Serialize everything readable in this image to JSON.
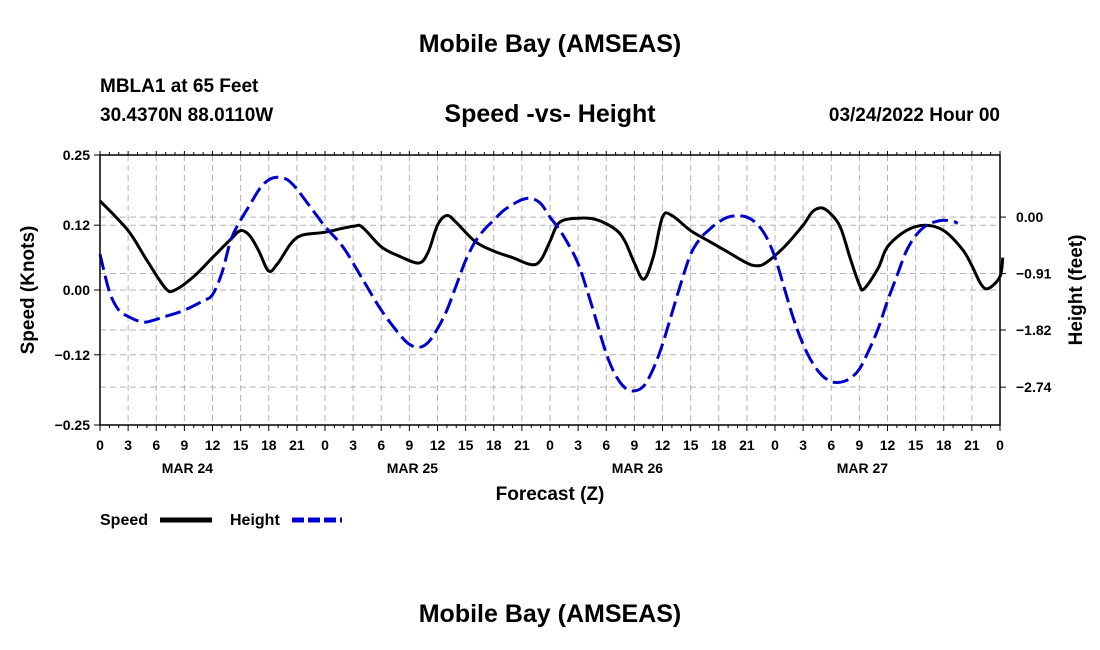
{
  "header": {
    "main_title": "Mobile Bay (AMSEAS)",
    "station": "MBLA1 at 65 Feet",
    "coords": "30.4370N  88.0110W",
    "forecast_time": "03/24/2022 Hour 00"
  },
  "footer": {
    "title": "Mobile Bay (AMSEAS)"
  },
  "chart_data": {
    "type": "line",
    "title": "Speed -vs- Height",
    "xlabel": "Forecast (Z)",
    "ylabel_left": "Speed (Knots)",
    "ylabel_right": "Height (feet)",
    "x_range_hours": [
      0,
      96
    ],
    "x_tick_step_hours": 3,
    "x_tick_labels": [
      "0",
      "3",
      "6",
      "9",
      "12",
      "15",
      "18",
      "21",
      "0",
      "3",
      "6",
      "9",
      "12",
      "15",
      "18",
      "21",
      "0",
      "3",
      "6",
      "9",
      "12",
      "15",
      "18",
      "21",
      "0",
      "3",
      "6",
      "9",
      "12",
      "15",
      "18",
      "21",
      "0"
    ],
    "date_labels": [
      {
        "label": "MAR 24",
        "hour": 9
      },
      {
        "label": "MAR 25",
        "hour": 33
      },
      {
        "label": "MAR 26",
        "hour": 57
      },
      {
        "label": "MAR 27",
        "hour": 81
      }
    ],
    "left_axis": {
      "min": -0.25,
      "max": 0.25,
      "ticks": [
        0.25,
        0.12,
        0.0,
        -0.12,
        -0.25
      ],
      "tick_labels": [
        "0.25",
        "0.12",
        "0.00",
        "−0.12",
        "−0.25"
      ]
    },
    "right_axis": {
      "min": -3.35,
      "max": 1.0,
      "ticks": [
        0.0,
        -0.91,
        -1.82,
        -2.74
      ],
      "tick_labels": [
        "0.00",
        "−0.91",
        "−1.82",
        "−2.74"
      ]
    },
    "grid": true,
    "series": [
      {
        "name": "Speed",
        "axis": "left",
        "color": "#000000",
        "style": "solid",
        "points": [
          [
            0,
            0.165
          ],
          [
            3,
            0.11
          ],
          [
            5,
            0.055
          ],
          [
            7,
            0.003
          ],
          [
            8,
            0.0
          ],
          [
            10,
            0.025
          ],
          [
            12,
            0.06
          ],
          [
            14,
            0.095
          ],
          [
            15,
            0.11
          ],
          [
            16,
            0.1
          ],
          [
            17,
            0.07
          ],
          [
            18,
            0.035
          ],
          [
            19,
            0.05
          ],
          [
            21,
            0.097
          ],
          [
            24,
            0.107
          ],
          [
            27,
            0.118
          ],
          [
            28,
            0.116
          ],
          [
            30,
            0.08
          ],
          [
            32,
            0.062
          ],
          [
            34,
            0.05
          ],
          [
            35,
            0.07
          ],
          [
            36,
            0.12
          ],
          [
            37,
            0.138
          ],
          [
            38,
            0.125
          ],
          [
            40,
            0.09
          ],
          [
            42,
            0.072
          ],
          [
            44,
            0.06
          ],
          [
            46,
            0.047
          ],
          [
            47,
            0.055
          ],
          [
            48,
            0.09
          ],
          [
            49,
            0.125
          ],
          [
            51,
            0.133
          ],
          [
            53,
            0.13
          ],
          [
            55,
            0.112
          ],
          [
            56,
            0.09
          ],
          [
            57,
            0.05
          ],
          [
            58,
            0.02
          ],
          [
            59,
            0.06
          ],
          [
            60,
            0.135
          ],
          [
            61,
            0.138
          ],
          [
            63,
            0.11
          ],
          [
            65,
            0.09
          ],
          [
            67,
            0.07
          ],
          [
            69,
            0.05
          ],
          [
            70,
            0.045
          ],
          [
            71,
            0.05
          ],
          [
            73,
            0.08
          ],
          [
            75,
            0.12
          ],
          [
            76,
            0.145
          ],
          [
            77,
            0.152
          ],
          [
            78,
            0.14
          ],
          [
            79,
            0.115
          ],
          [
            80,
            0.06
          ],
          [
            81,
            0.01
          ],
          [
            81.5,
            0.002
          ],
          [
            83,
            0.04
          ],
          [
            84,
            0.08
          ],
          [
            86,
            0.11
          ],
          [
            88,
            0.12
          ],
          [
            90,
            0.11
          ],
          [
            92,
            0.075
          ],
          [
            93,
            0.045
          ],
          [
            94,
            0.01
          ],
          [
            94.8,
            0.003
          ],
          [
            96,
            0.025
          ],
          [
            96.3,
            0.06
          ]
        ]
      },
      {
        "name": "Height",
        "axis": "right",
        "color": "#0000cc",
        "style": "dashed",
        "points": [
          [
            0,
            -0.6
          ],
          [
            1,
            -1.2
          ],
          [
            2,
            -1.5
          ],
          [
            3,
            -1.6
          ],
          [
            4,
            -1.67
          ],
          [
            5,
            -1.69
          ],
          [
            7,
            -1.6
          ],
          [
            9,
            -1.5
          ],
          [
            11,
            -1.35
          ],
          [
            12,
            -1.25
          ],
          [
            13,
            -0.9
          ],
          [
            14,
            -0.35
          ],
          [
            15,
            -0.05
          ],
          [
            16,
            0.2
          ],
          [
            17,
            0.45
          ],
          [
            18,
            0.6
          ],
          [
            19,
            0.64
          ],
          [
            20,
            0.6
          ],
          [
            21,
            0.45
          ],
          [
            22,
            0.25
          ],
          [
            23,
            0.05
          ],
          [
            24,
            -0.15
          ],
          [
            26,
            -0.5
          ],
          [
            28,
            -1.0
          ],
          [
            30,
            -1.5
          ],
          [
            32,
            -1.9
          ],
          [
            33,
            -2.05
          ],
          [
            34,
            -2.1
          ],
          [
            35,
            -2.02
          ],
          [
            36,
            -1.8
          ],
          [
            37,
            -1.5
          ],
          [
            38,
            -1.1
          ],
          [
            39,
            -0.7
          ],
          [
            40,
            -0.4
          ],
          [
            41,
            -0.2
          ],
          [
            42,
            -0.05
          ],
          [
            43,
            0.1
          ],
          [
            44,
            0.2
          ],
          [
            45,
            0.28
          ],
          [
            46,
            0.3
          ],
          [
            47,
            0.22
          ],
          [
            48,
            0.0
          ],
          [
            49,
            -0.2
          ],
          [
            50,
            -0.45
          ],
          [
            51,
            -0.75
          ],
          [
            52,
            -1.2
          ],
          [
            53,
            -1.7
          ],
          [
            54,
            -2.2
          ],
          [
            55,
            -2.55
          ],
          [
            56,
            -2.75
          ],
          [
            57,
            -2.8
          ],
          [
            58,
            -2.72
          ],
          [
            59,
            -2.45
          ],
          [
            60,
            -2.05
          ],
          [
            61,
            -1.55
          ],
          [
            62,
            -1.05
          ],
          [
            63,
            -0.6
          ],
          [
            64,
            -0.35
          ],
          [
            65,
            -0.2
          ],
          [
            66,
            -0.08
          ],
          [
            67,
            0.0
          ],
          [
            68,
            0.02
          ],
          [
            69,
            0.0
          ],
          [
            70,
            -0.1
          ],
          [
            71,
            -0.3
          ],
          [
            72,
            -0.65
          ],
          [
            73,
            -1.15
          ],
          [
            74,
            -1.65
          ],
          [
            75,
            -2.05
          ],
          [
            76,
            -2.35
          ],
          [
            77,
            -2.55
          ],
          [
            78,
            -2.65
          ],
          [
            79,
            -2.66
          ],
          [
            80,
            -2.6
          ],
          [
            81,
            -2.45
          ],
          [
            82,
            -2.15
          ],
          [
            83,
            -1.8
          ],
          [
            84,
            -1.35
          ],
          [
            85,
            -0.95
          ],
          [
            86,
            -0.55
          ],
          [
            87,
            -0.3
          ],
          [
            88,
            -0.15
          ],
          [
            89,
            -0.08
          ],
          [
            90,
            -0.05
          ],
          [
            91,
            -0.07
          ],
          [
            91.5,
            -0.1
          ]
        ]
      }
    ],
    "legend": [
      {
        "label": "Speed",
        "color": "#000000",
        "style": "solid"
      },
      {
        "label": "Height",
        "color": "#0000cc",
        "style": "dashed"
      }
    ]
  }
}
